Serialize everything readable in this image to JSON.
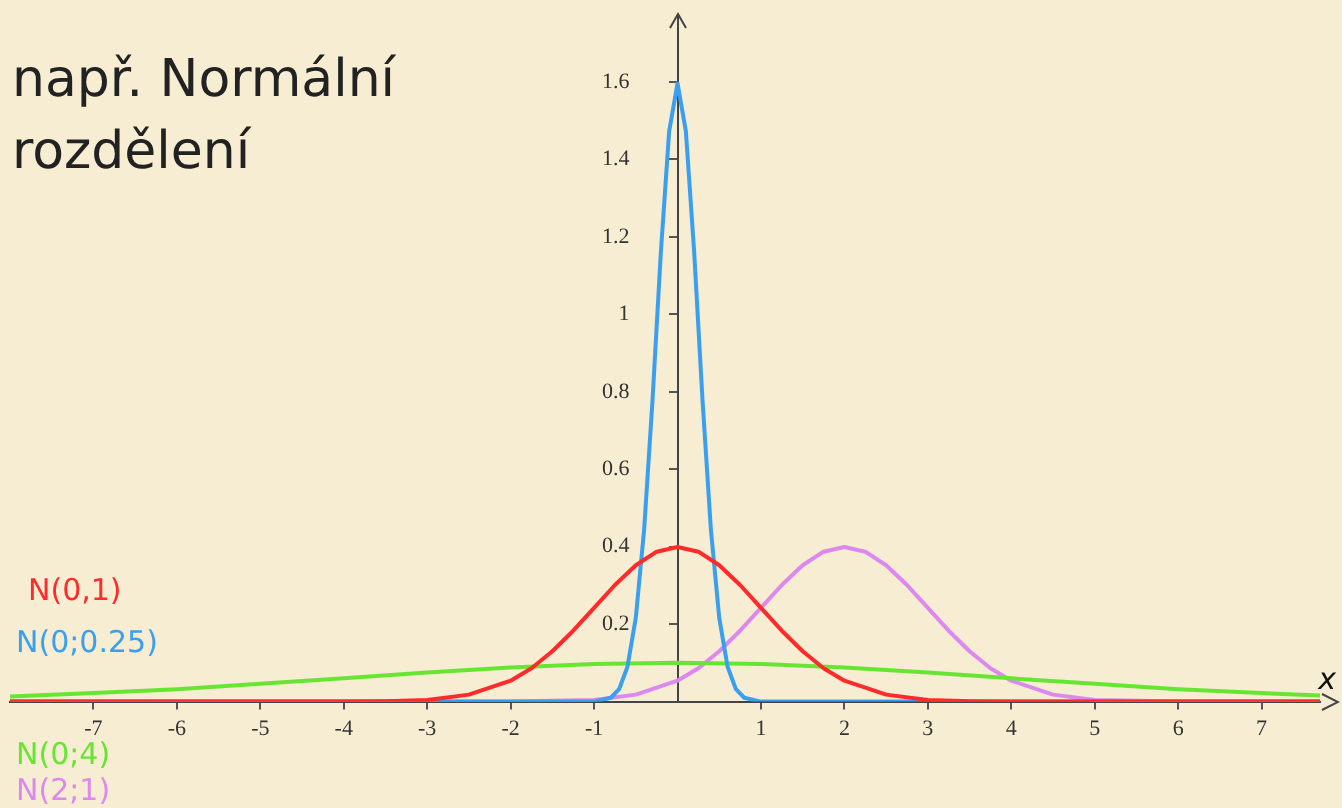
{
  "chart_data": {
    "type": "line",
    "title": "např. Normální rozdělení",
    "xlabel": "x",
    "xlim": [
      -8,
      7.7
    ],
    "ylim": [
      0,
      1.77
    ],
    "xticks": [
      -7,
      -6,
      -5,
      -4,
      -3,
      -2,
      -1,
      1,
      2,
      3,
      4,
      5,
      6,
      7
    ],
    "yticks": [
      0.2,
      0.4,
      0.6,
      0.8,
      1,
      1.2,
      1.4,
      1.6
    ],
    "grid": false,
    "legend": false,
    "marker": "none",
    "line_style": "solid",
    "series": [
      {
        "name": "N(0,1)",
        "color": "#ff2a2a",
        "x": [
          -8,
          -4,
          -3.5,
          -3,
          -2.5,
          -2,
          -1.75,
          -1.5,
          -1.25,
          -1,
          -0.75,
          -0.5,
          -0.25,
          0,
          0.25,
          0.5,
          0.75,
          1,
          1.25,
          1.5,
          1.75,
          2,
          2.5,
          3,
          3.5,
          4,
          7.7
        ],
        "values": [
          0,
          0.0,
          0.001,
          0.004,
          0.018,
          0.054,
          0.086,
          0.13,
          0.183,
          0.242,
          0.301,
          0.352,
          0.387,
          0.399,
          0.387,
          0.352,
          0.301,
          0.242,
          0.183,
          0.13,
          0.086,
          0.054,
          0.018,
          0.004,
          0.001,
          0.0,
          0
        ]
      },
      {
        "name": "N(0;0.25)",
        "color": "#3a9ff0",
        "x": [
          -8,
          -1,
          -0.8,
          -0.7,
          -0.6,
          -0.5,
          -0.4,
          -0.3,
          -0.2,
          -0.1,
          0,
          0.1,
          0.2,
          0.3,
          0.4,
          0.5,
          0.6,
          0.7,
          0.8,
          1,
          7.7
        ],
        "values": [
          0,
          0.0,
          0.01,
          0.032,
          0.09,
          0.216,
          0.444,
          0.777,
          1.159,
          1.473,
          1.596,
          1.473,
          1.159,
          0.777,
          0.444,
          0.216,
          0.09,
          0.032,
          0.01,
          0.0,
          0
        ]
      },
      {
        "name": "N(0;4)",
        "color": "#66e633",
        "x": [
          -8,
          -7,
          -6,
          -5,
          -4,
          -3,
          -2,
          -1,
          0,
          1,
          2,
          3,
          4,
          5,
          6,
          7,
          7.7
        ],
        "values": [
          0.013,
          0.022,
          0.032,
          0.046,
          0.06,
          0.075,
          0.088,
          0.097,
          0.1,
          0.097,
          0.088,
          0.075,
          0.06,
          0.046,
          0.032,
          0.022,
          0.016
        ]
      },
      {
        "name": "N(2;1)",
        "color": "#dd88ee",
        "x": [
          -8,
          -2,
          -1,
          -0.5,
          0,
          0.25,
          0.5,
          0.75,
          1,
          1.25,
          1.5,
          1.75,
          2,
          2.25,
          2.5,
          2.75,
          3,
          3.25,
          3.5,
          3.75,
          4,
          4.5,
          5,
          6,
          7.7
        ],
        "values": [
          0,
          0.0,
          0.004,
          0.018,
          0.054,
          0.086,
          0.13,
          0.183,
          0.242,
          0.301,
          0.352,
          0.387,
          0.399,
          0.387,
          0.352,
          0.301,
          0.242,
          0.183,
          0.13,
          0.086,
          0.054,
          0.018,
          0.004,
          0.0,
          0
        ]
      }
    ]
  }
}
